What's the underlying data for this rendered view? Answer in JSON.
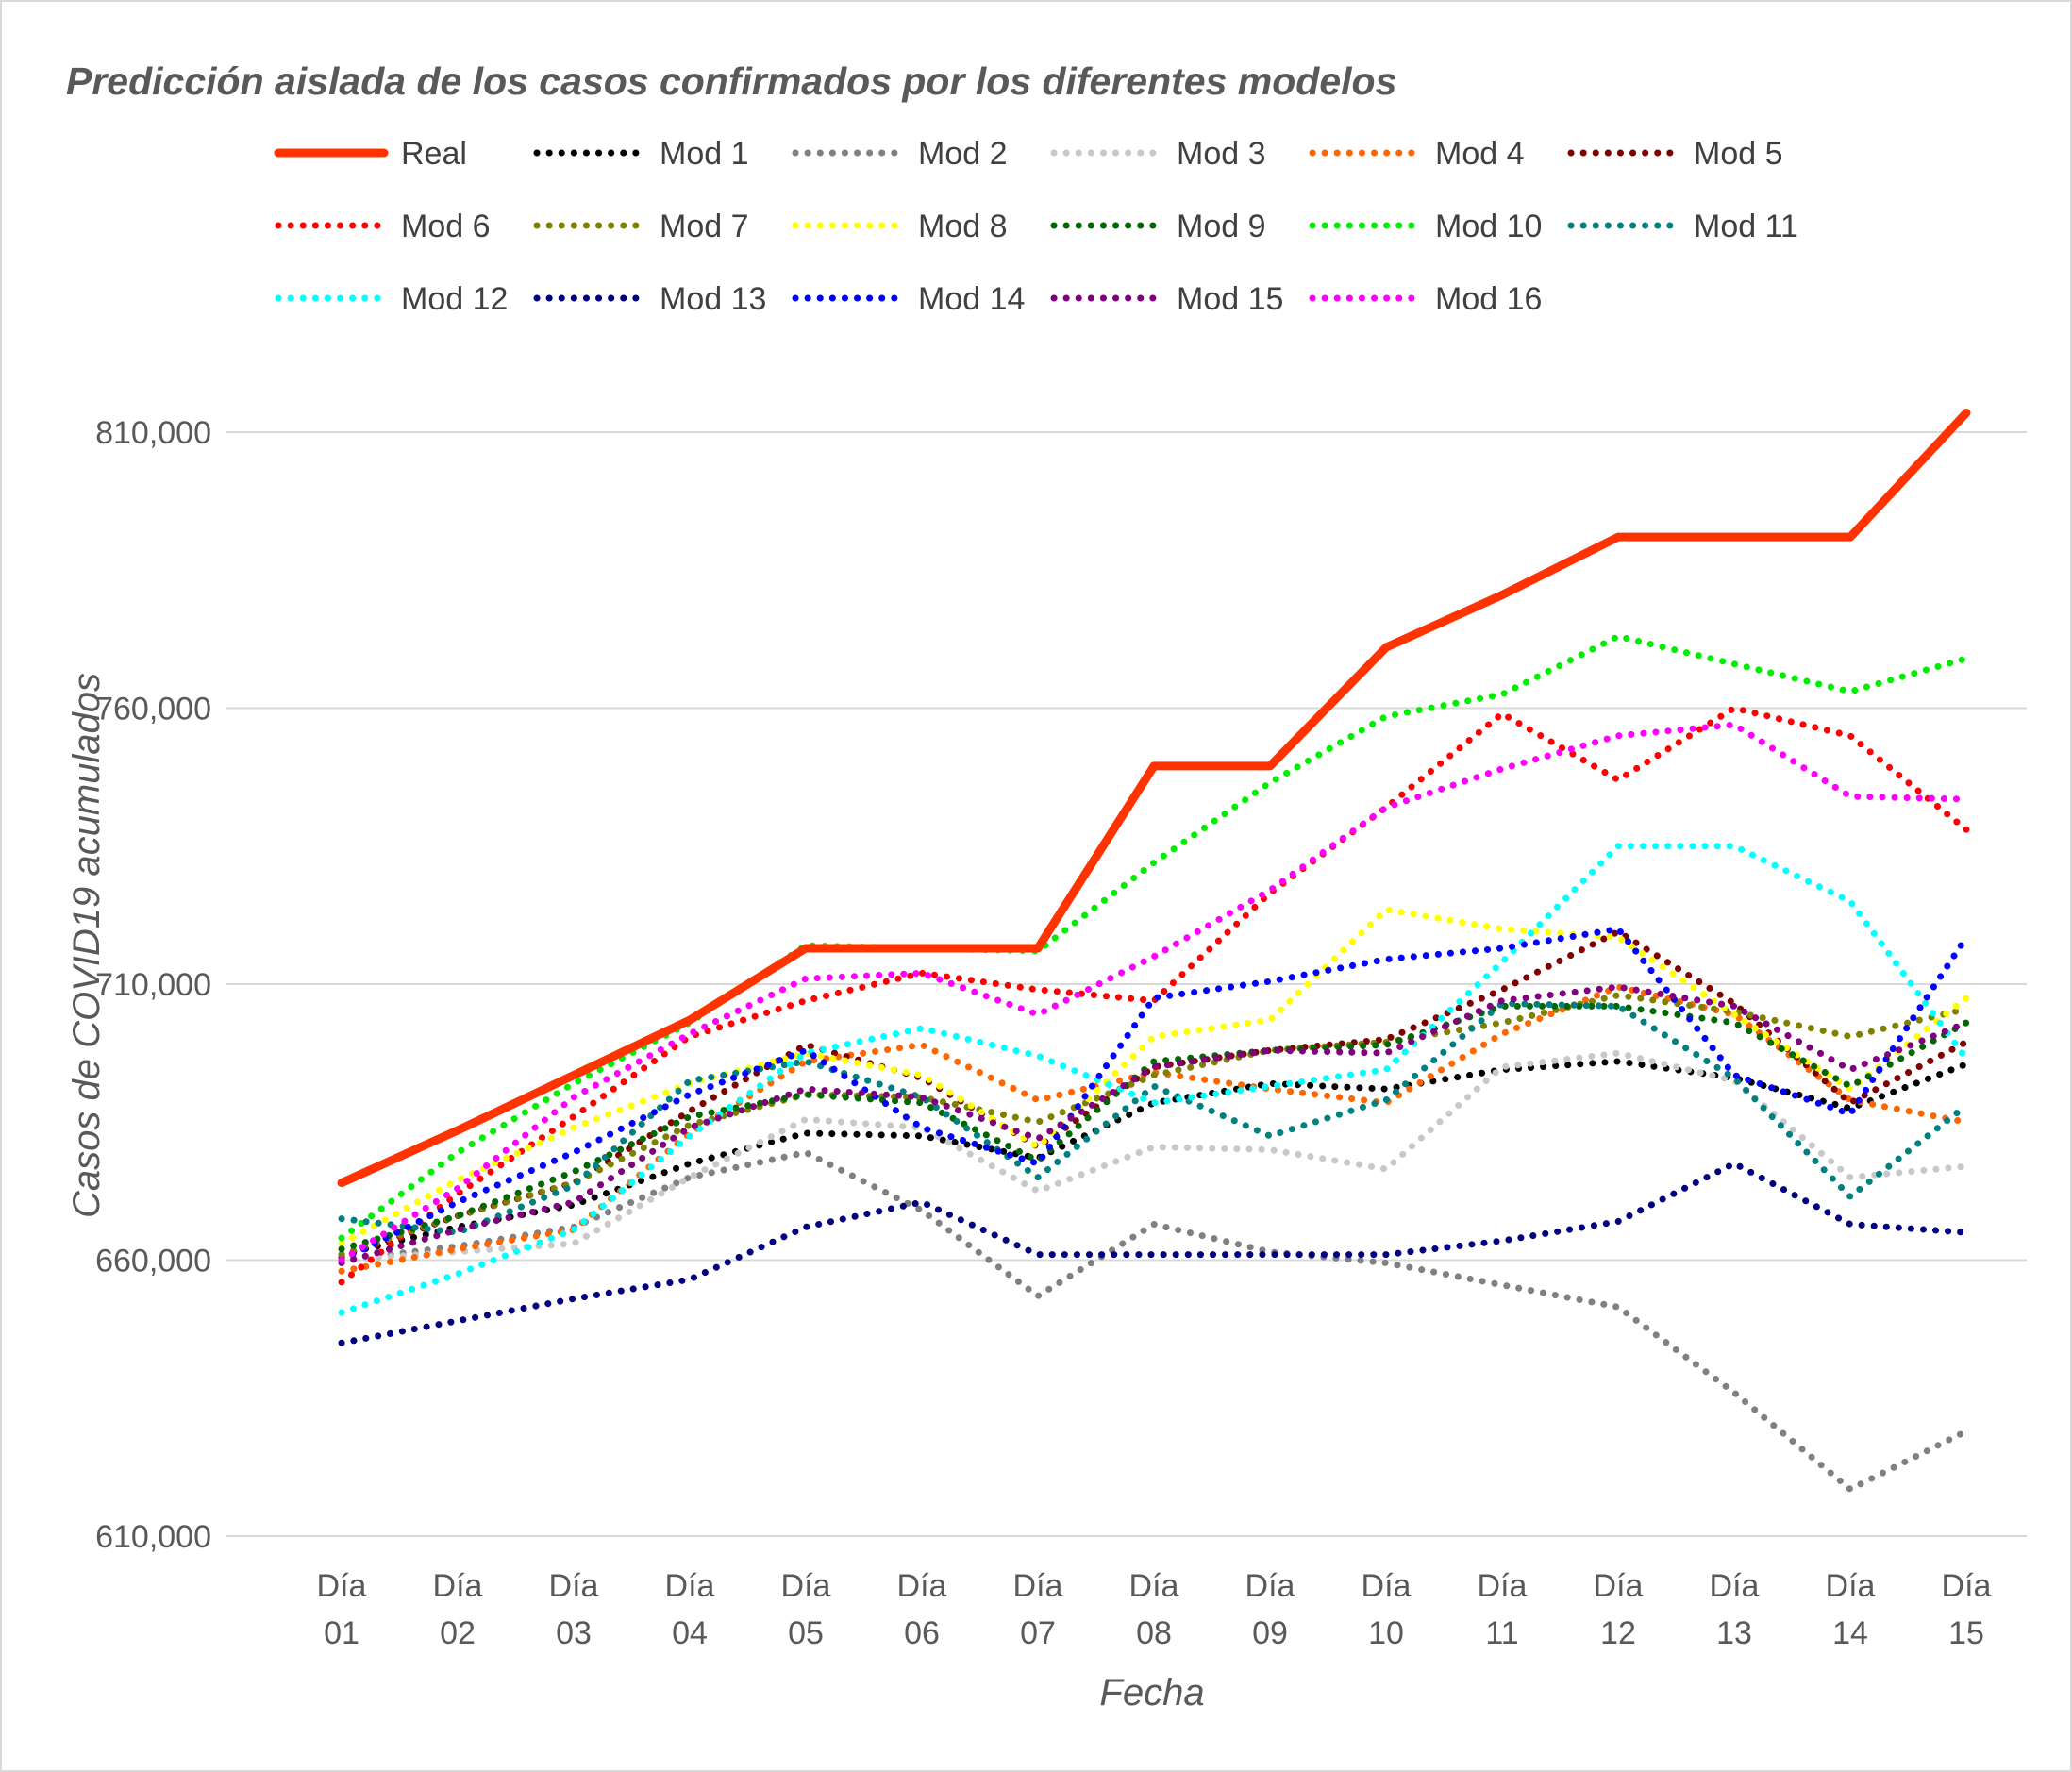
{
  "chart_data": {
    "type": "line",
    "title": "Predicción aislada de los casos confirmados por los diferentes modelos",
    "xlabel": "Fecha",
    "ylabel": "Casos de COVID19 acumulados",
    "ylim": [
      610000,
      810000
    ],
    "yticks": [
      "810,000",
      "760,000",
      "710,000",
      "660,000",
      "610,000"
    ],
    "ytick_values": [
      810000,
      760000,
      710000,
      660000,
      610000
    ],
    "grid": true,
    "legend_position": "top",
    "categories": [
      [
        "Día",
        "01"
      ],
      [
        "Día",
        "02"
      ],
      [
        "Día",
        "03"
      ],
      [
        "Día",
        "04"
      ],
      [
        "Día",
        "05"
      ],
      [
        "Día",
        "06"
      ],
      [
        "Día",
        "07"
      ],
      [
        "Día",
        "08"
      ],
      [
        "Día",
        "09"
      ],
      [
        "Día",
        "10"
      ],
      [
        "Día",
        "11"
      ],
      [
        "Día",
        "12"
      ],
      [
        "Día",
        "13"
      ],
      [
        "Día",
        "14"
      ],
      [
        "Día",
        "15"
      ]
    ],
    "series": [
      {
        "name": "Real",
        "color": "#ff3300",
        "style": "solid",
        "values": [
          674000,
          683500,
          693500,
          703500,
          716500,
          716500,
          716500,
          749500,
          749500,
          771000,
          780500,
          791000,
          791000,
          791000,
          813500
        ]
      },
      {
        "name": "Mod 1",
        "color": "#000000",
        "style": "dotted",
        "values": [
          661000,
          666000,
          670000,
          677500,
          683000,
          682500,
          678500,
          688500,
          692000,
          691000,
          694500,
          696000,
          693000,
          687500,
          695500
        ]
      },
      {
        "name": "Mod 2",
        "color": "#808080",
        "style": "dotted",
        "values": [
          660000,
          662500,
          666000,
          675000,
          679500,
          669000,
          653500,
          666500,
          661500,
          659500,
          655500,
          651500,
          636000,
          618500,
          629000
        ]
      },
      {
        "name": "Mod 3",
        "color": "#c8c8c8",
        "style": "dotted",
        "values": [
          660000,
          661500,
          663000,
          675000,
          685500,
          684000,
          672500,
          680500,
          680000,
          676500,
          695000,
          697500,
          692500,
          675000,
          677000
        ]
      },
      {
        "name": "Mod 4",
        "color": "#ff6600",
        "style": "dotted",
        "values": [
          658000,
          662000,
          665500,
          683000,
          696000,
          699000,
          689000,
          694000,
          691000,
          688500,
          701000,
          709500,
          704500,
          689000,
          685000
        ]
      },
      {
        "name": "Mod 5",
        "color": "#800000",
        "style": "dotted",
        "values": [
          660500,
          668000,
          674000,
          687000,
          699000,
          693000,
          680500,
          695000,
          698000,
          700000,
          709000,
          719500,
          706500,
          688500,
          699500
        ]
      },
      {
        "name": "Mod 6",
        "color": "#ff0000",
        "style": "dotted",
        "values": [
          656000,
          672000,
          686000,
          700500,
          707000,
          712000,
          709000,
          707000,
          726500,
          742000,
          759000,
          747000,
          760000,
          755000,
          738000
        ]
      },
      {
        "name": "Mod 7",
        "color": "#808000",
        "style": "dotted",
        "values": [
          661000,
          668000,
          674000,
          684500,
          690000,
          689500,
          685000,
          693500,
          698000,
          699500,
          703000,
          708000,
          705000,
          700500,
          705500
        ]
      },
      {
        "name": "Mod 8",
        "color": "#ffff00",
        "style": "dotted",
        "values": [
          663000,
          674500,
          684000,
          692000,
          697500,
          693500,
          680500,
          700500,
          703500,
          723500,
          720000,
          718500,
          704500,
          691000,
          707500
        ]
      },
      {
        "name": "Mod 9",
        "color": "#006600",
        "style": "dotted",
        "values": [
          662000,
          668000,
          676000,
          686000,
          690000,
          688500,
          678000,
          696000,
          698000,
          699000,
          706000,
          706000,
          703000,
          691500,
          703000
        ]
      },
      {
        "name": "Mod 10",
        "color": "#00ee00",
        "style": "dotted",
        "values": [
          664000,
          679500,
          692000,
          703000,
          717000,
          716500,
          716000,
          732000,
          746500,
          758500,
          762500,
          773000,
          768000,
          763000,
          769000
        ]
      },
      {
        "name": "Mod 11",
        "color": "#008080",
        "style": "dotted",
        "values": [
          667500,
          665000,
          673500,
          692500,
          696000,
          689500,
          675000,
          691500,
          682500,
          689000,
          706500,
          706000,
          693000,
          671500,
          688000
        ]
      },
      {
        "name": "Mod 12",
        "color": "#00ffff",
        "style": "dotted",
        "values": [
          650500,
          657500,
          665500,
          682500,
          697500,
          702000,
          697000,
          688500,
          691500,
          694500,
          714000,
          735000,
          735000,
          725000,
          696500
        ]
      },
      {
        "name": "Mod 13",
        "color": "#000080",
        "style": "dotted",
        "values": [
          645000,
          649000,
          653000,
          656500,
          666000,
          670500,
          661000,
          661000,
          661000,
          661000,
          663500,
          667000,
          677500,
          666500,
          665000
        ]
      },
      {
        "name": "Mod 14",
        "color": "#0000ff",
        "style": "dotted",
        "values": [
          660000,
          670500,
          679500,
          690000,
          698000,
          684000,
          677500,
          707500,
          710500,
          714500,
          716500,
          720000,
          693500,
          686500,
          718500
        ]
      },
      {
        "name": "Mod 15",
        "color": "#800080",
        "style": "dotted",
        "values": [
          659500,
          665500,
          670500,
          684000,
          691000,
          689500,
          682000,
          695000,
          698000,
          697500,
          707000,
          709500,
          706000,
          694500,
          703000
        ]
      },
      {
        "name": "Mod 16",
        "color": "#ff00ff",
        "style": "dotted",
        "values": [
          660000,
          673000,
          689500,
          701000,
          711000,
          712000,
          704500,
          715000,
          727000,
          742000,
          749000,
          755000,
          757000,
          744000,
          743500
        ]
      }
    ]
  }
}
